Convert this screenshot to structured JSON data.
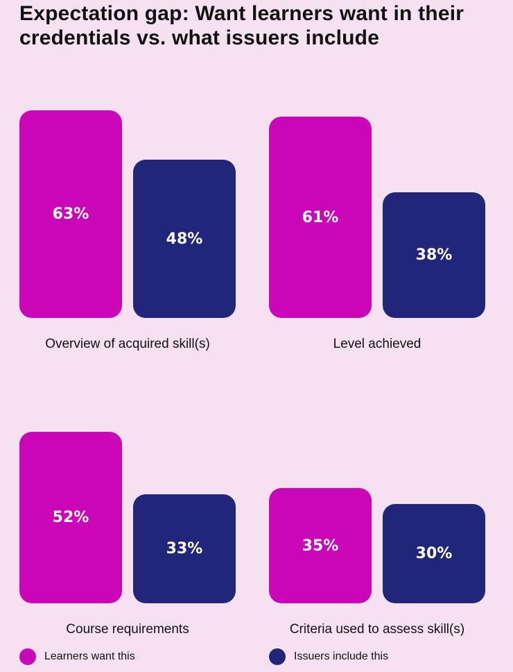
{
  "title": "Expectation gap: Want learners want in their credentials vs. what issuers include",
  "colors": {
    "background": "#f5e1f0",
    "learners": "#cb06b8",
    "issuers": "#22267a"
  },
  "legend": [
    {
      "label": "Learners want this",
      "color": "#cb06b8"
    },
    {
      "label": "Issuers include this",
      "color": "#22267a"
    }
  ],
  "chart_data": {
    "type": "bar",
    "title": "Expectation gap: Want learners want in their credentials vs. what issuers include",
    "categories": [
      "Overview of acquired skill(s)",
      "Level achieved",
      "Course requirements",
      "Criteria used to assess skill(s)"
    ],
    "series": [
      {
        "name": "Learners want this",
        "values": [
          63,
          61,
          52,
          35
        ],
        "labels": [
          "63%",
          "61%",
          "52%",
          "35%"
        ]
      },
      {
        "name": "Issuers include this",
        "values": [
          48,
          38,
          33,
          30
        ],
        "labels": [
          "48%",
          "38%",
          "33%",
          "30%"
        ]
      }
    ],
    "unit": "%",
    "grid": false,
    "legend_position": "bottom"
  }
}
